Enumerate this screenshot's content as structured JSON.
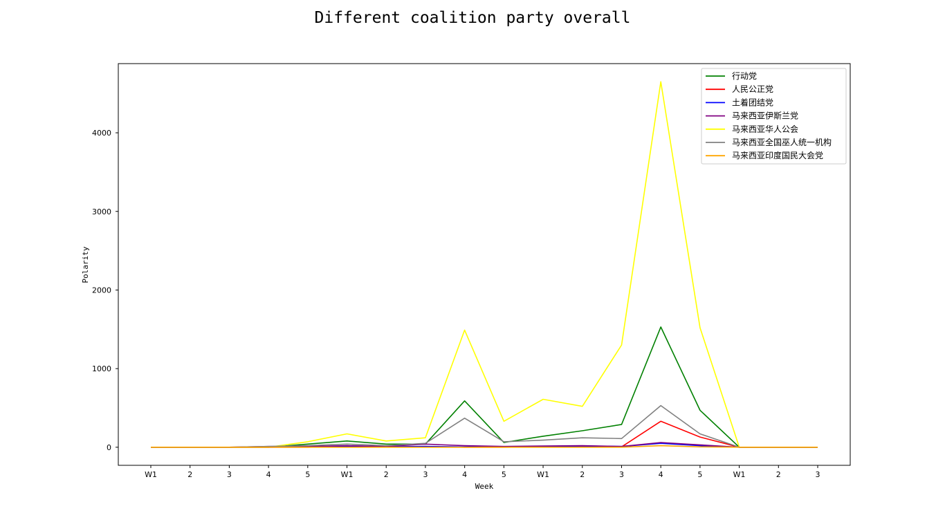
{
  "chart_data": {
    "type": "line",
    "title": "Different coalition party overall",
    "xlabel": "Week",
    "ylabel": "Polarity",
    "categories": [
      "W1",
      "2",
      "3",
      "4",
      "5",
      "W1",
      "2",
      "3",
      "4",
      "5",
      "W1",
      "2",
      "3",
      "4",
      "5",
      "W1",
      "2",
      "3"
    ],
    "ylim": [
      -230,
      4880
    ],
    "yticks": [
      0,
      1000,
      2000,
      3000,
      4000
    ],
    "grid": false,
    "legend": "top-right",
    "series": [
      {
        "name": "行动党",
        "color": "#008000",
        "values": [
          0,
          0,
          0,
          0,
          40,
          80,
          40,
          40,
          590,
          60,
          140,
          210,
          290,
          1530,
          470,
          0,
          0,
          0
        ]
      },
      {
        "name": "人民公正党",
        "color": "#ff0000",
        "values": [
          0,
          0,
          0,
          0,
          0,
          10,
          5,
          10,
          0,
          0,
          5,
          10,
          5,
          330,
          130,
          0,
          0,
          0
        ]
      },
      {
        "name": "土着团结党",
        "color": "#0000ff",
        "values": [
          0,
          0,
          0,
          0,
          5,
          10,
          5,
          10,
          5,
          5,
          10,
          15,
          10,
          50,
          20,
          0,
          0,
          0
        ]
      },
      {
        "name": "马来西亚伊斯兰党",
        "color": "#800080",
        "values": [
          0,
          0,
          0,
          10,
          10,
          20,
          10,
          40,
          20,
          10,
          15,
          20,
          10,
          60,
          30,
          0,
          0,
          0
        ]
      },
      {
        "name": "马来西亚华人公会",
        "color": "#ffff00",
        "values": [
          0,
          0,
          0,
          0,
          70,
          170,
          80,
          120,
          1490,
          330,
          610,
          520,
          1300,
          4650,
          1520,
          0,
          0,
          0
        ]
      },
      {
        "name": "马来西亚全国巫人统一机构",
        "color": "#808080",
        "values": [
          0,
          0,
          0,
          10,
          20,
          40,
          20,
          50,
          370,
          70,
          90,
          120,
          110,
          530,
          170,
          0,
          0,
          0
        ]
      },
      {
        "name": "马来西亚印度国民大会党",
        "color": "#ffa500",
        "values": [
          0,
          0,
          0,
          0,
          0,
          0,
          0,
          0,
          0,
          0,
          0,
          0,
          0,
          20,
          5,
          0,
          0,
          0
        ]
      }
    ]
  }
}
